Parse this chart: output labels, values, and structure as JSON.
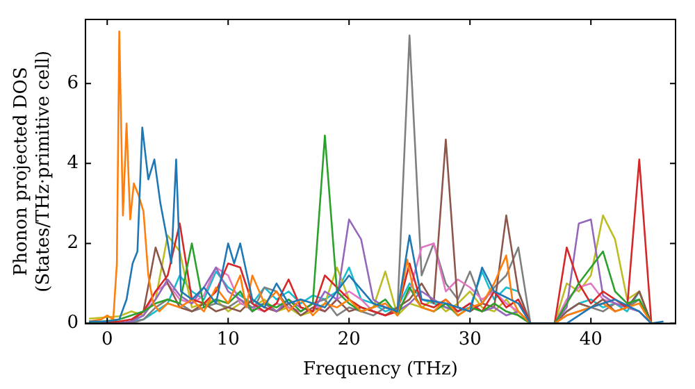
{
  "chart_data": {
    "type": "line",
    "xlabel": "Frequency (THz)",
    "ylabel": "Phonon projected DOS\n(States/THz·primitive cell)",
    "xlim": [
      -1.8,
      47
    ],
    "xticks": [
      0,
      10,
      20,
      30,
      40
    ],
    "ylim": [
      0,
      7.6
    ],
    "yticks": [
      0,
      2,
      4,
      6
    ],
    "legend": false,
    "x": [
      -1.5,
      1,
      2,
      3,
      4,
      5,
      6,
      7,
      8,
      9,
      10,
      11,
      12,
      13,
      14,
      15,
      16,
      17,
      18,
      19,
      20,
      21,
      22,
      23,
      24,
      25,
      26,
      27,
      28,
      29,
      30,
      31,
      32,
      33,
      34,
      35,
      37,
      38,
      39,
      40,
      41,
      42,
      43,
      44,
      45
    ],
    "series": [
      {
        "color": "#1f77b4",
        "x": [
          -1.5,
          0,
          1,
          1.6,
          2.1,
          2.5,
          2.9,
          3.4,
          3.9,
          4.4,
          4.9,
          5.3,
          5.7,
          6.1,
          7,
          8,
          9,
          10,
          10.5,
          11,
          12,
          13,
          14,
          15,
          16,
          18,
          20,
          22,
          24,
          25,
          26,
          28,
          30,
          31,
          32,
          34,
          35,
          38,
          40,
          42,
          44,
          45,
          46
        ],
        "values": [
          0.05,
          0.05,
          0.1,
          0.6,
          1.5,
          1.8,
          4.9,
          3.6,
          4.1,
          3.0,
          2.2,
          1.5,
          4.1,
          0.8,
          0.6,
          0.9,
          0.5,
          2.0,
          1.5,
          2.0,
          0.6,
          0.4,
          1.0,
          0.5,
          0.6,
          0.4,
          1.2,
          0.5,
          0.3,
          2.2,
          0.6,
          0.5,
          0.3,
          1.4,
          0.8,
          0.5,
          0,
          0,
          0.4,
          0.6,
          0.3,
          0,
          0.05
        ]
      },
      {
        "color": "#ff7f0e",
        "x": [
          -1.5,
          -0.5,
          0,
          0.5,
          0.8,
          1,
          1.3,
          1.6,
          1.9,
          2.2,
          2.6,
          3,
          3.4,
          3.8,
          4.3,
          5,
          6,
          7,
          8,
          9,
          10,
          11,
          11.5,
          12,
          13,
          14,
          15,
          16,
          17,
          18,
          19,
          20,
          21,
          22,
          23,
          24,
          24.8,
          25.5,
          26,
          27,
          28,
          29,
          30,
          31,
          32,
          33,
          33.5,
          34,
          35,
          37,
          38,
          39,
          40,
          41,
          42,
          43,
          44,
          45
        ],
        "values": [
          0.05,
          0.1,
          0.2,
          0.1,
          1.5,
          7.3,
          2.7,
          5.0,
          2.6,
          3.5,
          3.2,
          2.8,
          1.2,
          0.5,
          0.3,
          0.5,
          0.4,
          0.6,
          0.3,
          0.9,
          0.5,
          1.2,
          0.4,
          1.2,
          0.5,
          0.8,
          0.3,
          0.6,
          0.2,
          0.5,
          0.4,
          0.6,
          0.3,
          0.4,
          0.5,
          0.2,
          1.6,
          0.6,
          0.4,
          0.3,
          0.6,
          0.2,
          0.4,
          0.5,
          1.0,
          1.7,
          0.6,
          0.3,
          0,
          0,
          0.2,
          0.3,
          0.4,
          0.5,
          0.3,
          0.4,
          0.5,
          0
        ]
      },
      {
        "color": "#2ca02c",
        "values": [
          0,
          0.1,
          0.2,
          0.3,
          0.5,
          0.6,
          0.5,
          2.0,
          0.4,
          0.6,
          0.5,
          0.8,
          0.3,
          0.5,
          0.4,
          0.6,
          0.3,
          0.5,
          4.7,
          0.8,
          0.5,
          0.3,
          0.4,
          0.6,
          0.2,
          0.9,
          0.4,
          0.3,
          0.5,
          0.2,
          0.4,
          0.3,
          0.5,
          0.3,
          0.2,
          0,
          0,
          0.5,
          1.0,
          1.4,
          1.8,
          0.8,
          0.5,
          0.6,
          0
        ]
      },
      {
        "color": "#d62728",
        "values": [
          0,
          0.05,
          0.1,
          0.3,
          0.8,
          1.2,
          2.5,
          0.6,
          0.5,
          0.8,
          1.5,
          1.4,
          0.5,
          0.3,
          0.5,
          1.1,
          0.4,
          0.3,
          1.2,
          0.9,
          0.6,
          0.4,
          0.3,
          0.2,
          0.3,
          1.5,
          0.5,
          0.4,
          0.6,
          0.3,
          0.5,
          0.3,
          0.8,
          0.4,
          0.6,
          0,
          0,
          1.9,
          1.0,
          0.5,
          0.8,
          0.6,
          0.4,
          4.1,
          0
        ]
      },
      {
        "color": "#9467bd",
        "values": [
          0,
          0,
          0.05,
          0.2,
          0.6,
          1.1,
          0.7,
          0.5,
          0.9,
          1.4,
          0.8,
          0.6,
          0.4,
          0.5,
          0.3,
          0.6,
          0.4,
          0.3,
          0.8,
          0.6,
          2.6,
          2.1,
          0.6,
          0.4,
          0.3,
          0.5,
          0.8,
          0.6,
          0.4,
          0.3,
          0.5,
          0.3,
          0.4,
          0.2,
          0.3,
          0,
          0,
          0.4,
          2.5,
          2.6,
          0.7,
          0.5,
          0.4,
          0.3,
          0
        ]
      },
      {
        "color": "#8c564b",
        "values": [
          0,
          0,
          0.05,
          0.3,
          1.9,
          1.0,
          0.4,
          0.3,
          0.5,
          0.3,
          0.4,
          0.3,
          0.6,
          0.4,
          0.3,
          0.5,
          0.2,
          0.4,
          0.3,
          0.6,
          0.3,
          0.4,
          0.3,
          0.2,
          0.4,
          0.6,
          1.0,
          0.5,
          4.6,
          0.4,
          0.3,
          0.5,
          0.4,
          2.7,
          0.8,
          0,
          0,
          0.3,
          0.5,
          0.4,
          0.6,
          0.3,
          0.4,
          0.8,
          0
        ]
      },
      {
        "color": "#e377c2",
        "values": [
          0,
          0,
          0.05,
          0.2,
          0.8,
          1.0,
          0.6,
          0.5,
          0.7,
          1.4,
          1.2,
          0.5,
          0.4,
          0.3,
          0.5,
          0.4,
          0.3,
          0.5,
          0.3,
          0.6,
          0.8,
          0.6,
          0.3,
          0.2,
          0.3,
          0.8,
          1.9,
          2.0,
          0.8,
          1.1,
          0.9,
          0.6,
          0.8,
          0.5,
          0.3,
          0,
          0,
          0.6,
          0.9,
          1.0,
          0.6,
          0.5,
          0.4,
          0.3,
          0
        ]
      },
      {
        "color": "#7f7f7f",
        "values": [
          0,
          0,
          0,
          0.1,
          0.4,
          0.6,
          0.5,
          0.3,
          0.4,
          0.5,
          0.4,
          0.6,
          0.3,
          0.9,
          0.8,
          0.4,
          0.3,
          0.5,
          0.6,
          0.2,
          0.4,
          0.3,
          0.2,
          0.4,
          0.3,
          7.2,
          1.2,
          2.0,
          1.0,
          0.6,
          1.3,
          0.5,
          0.9,
          1.2,
          1.9,
          0,
          0,
          0.2,
          0.3,
          0.4,
          0.3,
          0.5,
          0.4,
          0.6,
          0
        ]
      },
      {
        "color": "#bcbd22",
        "values": [
          0.12,
          0.18,
          0.3,
          0.2,
          0.6,
          2.2,
          1.8,
          0.4,
          0.5,
          0.6,
          0.3,
          0.5,
          0.4,
          0.6,
          0.3,
          0.4,
          0.2,
          0.3,
          0.5,
          1.4,
          0.6,
          0.3,
          0.4,
          1.3,
          0.2,
          0.5,
          0.4,
          0.6,
          0.3,
          0.5,
          0.8,
          0.4,
          0.3,
          0.6,
          0.2,
          0,
          0,
          1.0,
          0.8,
          1.2,
          2.7,
          2.1,
          0.6,
          0.8,
          0
        ]
      },
      {
        "color": "#17becf",
        "values": [
          0,
          0,
          0.05,
          0.1,
          0.3,
          0.5,
          1.2,
          0.8,
          0.6,
          1.3,
          0.9,
          0.7,
          0.5,
          0.9,
          0.6,
          0.8,
          0.5,
          0.7,
          0.6,
          0.8,
          1.4,
          0.6,
          0.5,
          0.3,
          0.4,
          1.0,
          0.6,
          0.5,
          0.4,
          0.3,
          0.4,
          1.3,
          0.6,
          0.9,
          0.8,
          0,
          0,
          0.3,
          0.5,
          0.6,
          0.4,
          0.5,
          0.3,
          0.8,
          0
        ]
      }
    ]
  }
}
